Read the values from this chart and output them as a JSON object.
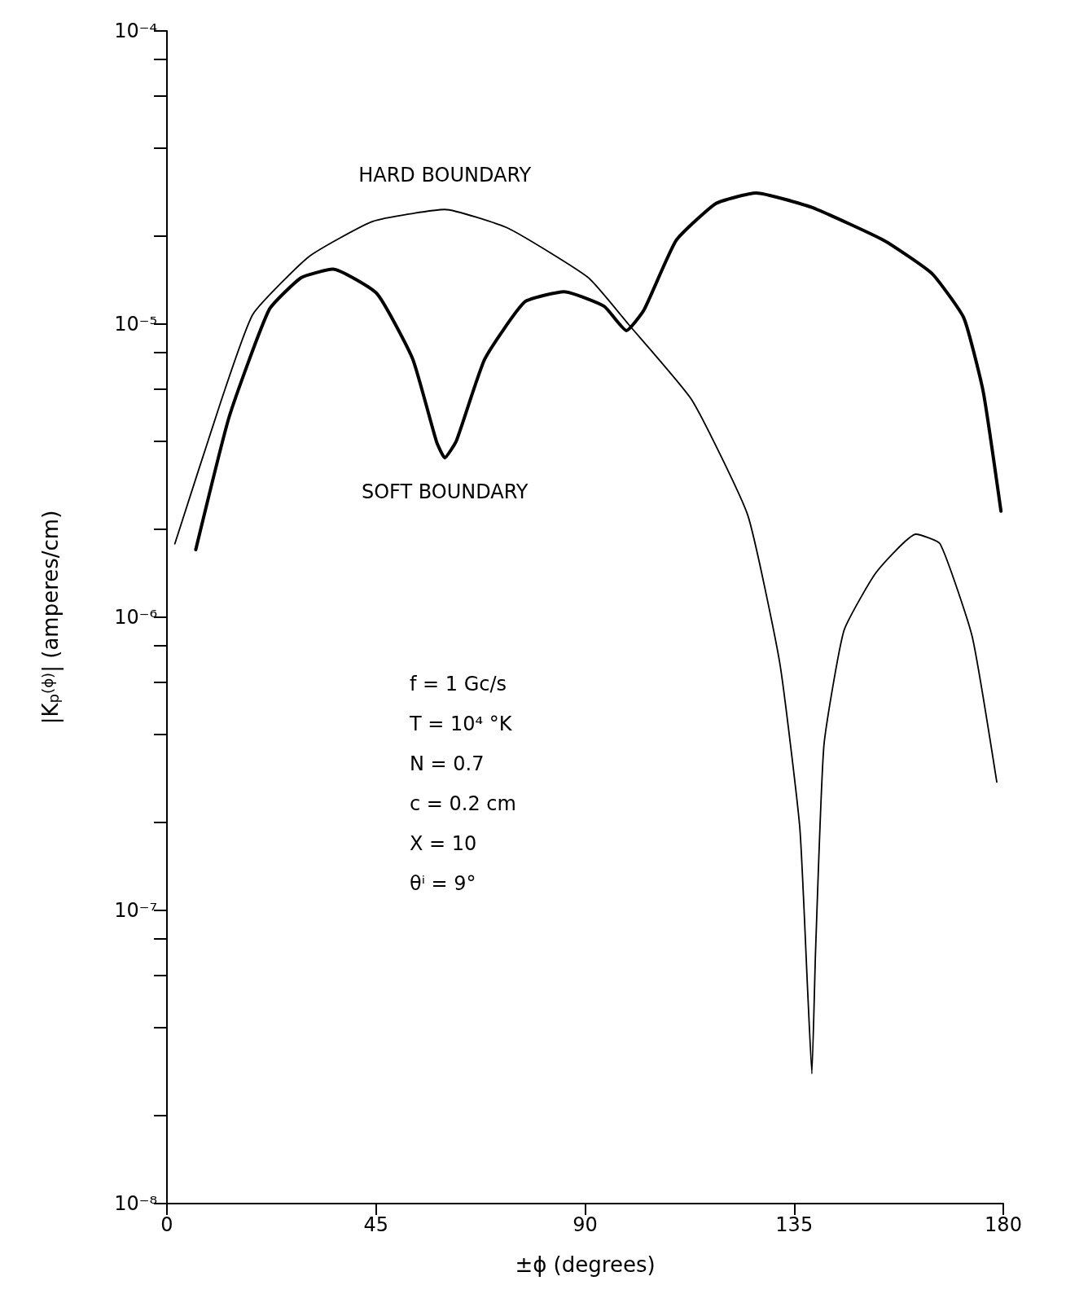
{
  "chart_data": {
    "type": "line",
    "xlabel": "±ϕ (degrees)",
    "ylabel": "|K$_{p}$$^{(ϕ)}$| (amperes/cm)",
    "xlim": [
      0,
      180
    ],
    "xticks": [
      0,
      45,
      90,
      135,
      180
    ],
    "ylim": [
      1e-08,
      0.0001
    ],
    "yticks": [
      {
        "value": 1e-08,
        "label": "10⁻⁸"
      },
      {
        "value": 2e-08,
        "label": null
      },
      {
        "value": 4e-08,
        "label": null
      },
      {
        "value": 6e-08,
        "label": null
      },
      {
        "value": 8e-08,
        "label": null
      },
      {
        "value": 1e-07,
        "label": "10⁻⁷"
      },
      {
        "value": 2e-07,
        "label": null
      },
      {
        "value": 4e-07,
        "label": null
      },
      {
        "value": 6e-07,
        "label": null
      },
      {
        "value": 8e-07,
        "label": null
      },
      {
        "value": 1e-06,
        "label": "10⁻⁶"
      },
      {
        "value": 2e-06,
        "label": null
      },
      {
        "value": 4e-06,
        "label": null
      },
      {
        "value": 6e-06,
        "label": null
      },
      {
        "value": 8e-06,
        "label": null
      },
      {
        "value": 1e-05,
        "label": "10⁻⁵"
      },
      {
        "value": 2e-05,
        "label": null
      },
      {
        "value": 4e-05,
        "label": null
      },
      {
        "value": 6e-05,
        "label": null
      },
      {
        "value": 8e-05,
        "label": null
      },
      {
        "value": 0.0001,
        "label": "10⁻⁴"
      }
    ],
    "log": "y",
    "grid": false,
    "legend": false,
    "marker": "none",
    "line_style": "solid",
    "series": [
      {
        "name": "HARD BOUNDARY",
        "color": "#000000",
        "x": [
          1.7,
          11.7,
          18.5,
          30.6,
          44.3,
          59.8,
          73.5,
          90.7,
          99.3,
          113,
          125,
          131.9,
          136.2,
          137.9,
          138.8,
          139.6,
          141.4,
          145.7,
          152.6,
          161.2,
          166.4,
          173.3,
          178.6
        ],
        "values": [
          1.78e-06,
          5.5e-06,
          1.08e-05,
          1.7e-05,
          2.24e-05,
          2.46e-05,
          2.12e-05,
          1.44e-05,
          1e-05,
          5.5e-06,
          2.23e-06,
          6.97e-07,
          1.92e-07,
          5.3e-08,
          2.77e-08,
          7.3e-08,
          3.66e-07,
          9e-07,
          1.42e-06,
          1.92e-06,
          1.78e-06,
          8.6e-07,
          2.74e-07
        ]
      },
      {
        "name": "SOFT BOUNDARY",
        "color": "#000000",
        "x": [
          6.2,
          13.4,
          22,
          28.9,
          35.7,
          45.2,
          52.9,
          58,
          59.8,
          62.3,
          68.4,
          77,
          85.5,
          94.1,
          98.9,
          102.7,
          109.6,
          118.2,
          126.8,
          138.8,
          154.3,
          164.6,
          171.5,
          175.7,
          179.5
        ],
        "values": [
          1.7e-06,
          4.83e-06,
          1.12e-05,
          1.44e-05,
          1.54e-05,
          1.27e-05,
          7.6e-06,
          3.98e-06,
          3.5e-06,
          4e-06,
          7.6e-06,
          1.19e-05,
          1.29e-05,
          1.15e-05,
          9.5e-06,
          1.12e-05,
          1.93e-05,
          2.58e-05,
          2.8e-05,
          2.5e-05,
          1.93e-05,
          1.49e-05,
          1.05e-05,
          5.86e-06,
          2.3e-06
        ]
      }
    ],
    "annotations": [
      "f = 1 Gc/s",
      "T = 10⁴ °K",
      "N = 0.7",
      "c = 0.2 cm",
      "X = 10",
      "θⁱ = 9°"
    ]
  }
}
